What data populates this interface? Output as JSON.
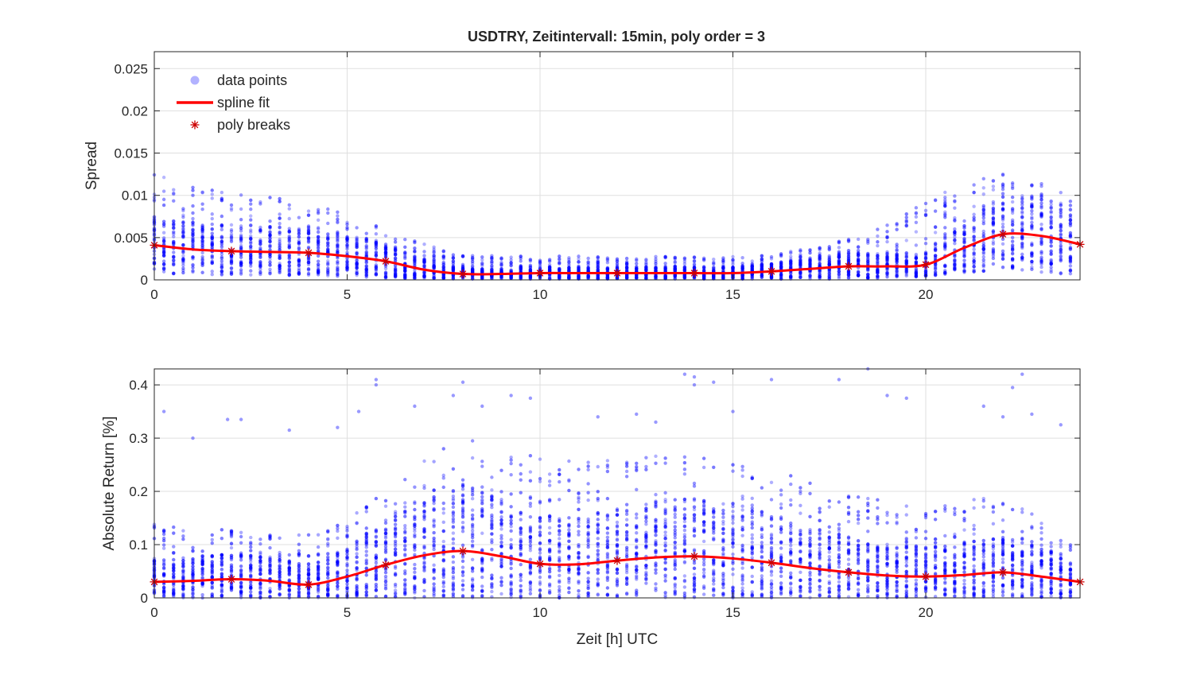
{
  "title": "USDTRY, Zeitintervall: 15min, poly order = 3",
  "colors": {
    "points": "#0000ff",
    "fit": "#ff0000",
    "breaks": "#cc0000",
    "grid": "#dfdfdf",
    "axis": "#262626"
  },
  "chart_data": [
    {
      "type": "scatter",
      "ylabel": "Spread",
      "xlim": [
        0,
        24
      ],
      "ylim": [
        0,
        0.027
      ],
      "xticks": [
        0,
        5,
        10,
        15,
        20
      ],
      "xtick_labels": [
        "0",
        "5",
        "10",
        "15",
        "20"
      ],
      "yticks": [
        0,
        0.005,
        0.01,
        0.015,
        0.02,
        0.025
      ],
      "ytick_labels": [
        "0",
        "0.005",
        "0.01",
        "0.015",
        "0.02",
        "0.025"
      ],
      "grid": true,
      "legend": {
        "placement": "top-left",
        "entries": [
          {
            "label": "data points",
            "marker": "circle"
          },
          {
            "label": "spline fit",
            "marker": "line"
          },
          {
            "label": "poly breaks",
            "marker": "asterisk"
          }
        ]
      },
      "scatter_profile": {
        "x": [
          0,
          1,
          2,
          3,
          4,
          5,
          6,
          7,
          8,
          9,
          10,
          11,
          12,
          13,
          14,
          15,
          16,
          17,
          18,
          19,
          20,
          21,
          22,
          23,
          24
        ],
        "y_max": [
          0.0125,
          0.011,
          0.0105,
          0.0098,
          0.009,
          0.008,
          0.006,
          0.0045,
          0.003,
          0.0028,
          0.0028,
          0.0028,
          0.0028,
          0.0028,
          0.0028,
          0.0028,
          0.003,
          0.0038,
          0.0048,
          0.0065,
          0.0095,
          0.0118,
          0.0128,
          0.0115,
          0.0098
        ],
        "y_min": [
          0.0008,
          0.0006,
          0.0005,
          0.0005,
          0.0005,
          0.0004,
          0.0002,
          0.0001,
          0.0001,
          0.0001,
          0.0001,
          0.0001,
          0.0001,
          0.0001,
          0.0001,
          0.0001,
          0.0001,
          0.0001,
          0.0001,
          0.0002,
          0.0004,
          0.0008,
          0.0012,
          0.0008,
          0.0006
        ]
      },
      "series": [
        {
          "name": "spline fit",
          "type": "line",
          "x": [
            0,
            1,
            2,
            3,
            4,
            5,
            6,
            7,
            8,
            9,
            10,
            11,
            12,
            13,
            14,
            15,
            16,
            17,
            18,
            19,
            20,
            21,
            22,
            23,
            24
          ],
          "y": [
            0.0041,
            0.0036,
            0.0034,
            0.0033,
            0.0032,
            0.0028,
            0.0022,
            0.0012,
            0.0007,
            0.0007,
            0.0008,
            0.0008,
            0.0008,
            0.0008,
            0.0008,
            0.0008,
            0.001,
            0.0013,
            0.0016,
            0.0016,
            0.0018,
            0.0038,
            0.0054,
            0.0052,
            0.0042
          ]
        },
        {
          "name": "poly breaks",
          "type": "scatter",
          "x": [
            0,
            2,
            4,
            6,
            8,
            10,
            12,
            14,
            16,
            18,
            20,
            22,
            24
          ],
          "y": [
            0.0041,
            0.0034,
            0.0032,
            0.0022,
            0.0007,
            0.0008,
            0.0008,
            0.0008,
            0.001,
            0.0016,
            0.0018,
            0.0054,
            0.0042
          ]
        }
      ]
    },
    {
      "type": "scatter",
      "ylabel": "Absolute Return [%]",
      "xlabel": "Zeit [h] UTC",
      "xlim": [
        0,
        24
      ],
      "ylim": [
        0,
        0.43
      ],
      "xticks": [
        0,
        5,
        10,
        15,
        20
      ],
      "xtick_labels": [
        "0",
        "5",
        "10",
        "15",
        "20"
      ],
      "yticks": [
        0,
        0.1,
        0.2,
        0.3,
        0.4
      ],
      "ytick_labels": [
        "0",
        "0.1",
        "0.2",
        "0.3",
        "0.4"
      ],
      "grid": true,
      "scatter_profile": {
        "x": [
          0,
          1,
          2,
          3,
          4,
          5,
          6,
          7,
          8,
          9,
          10,
          11,
          12,
          13,
          14,
          15,
          16,
          17,
          18,
          19,
          20,
          21,
          22,
          23,
          24
        ],
        "y_max": [
          0.14,
          0.13,
          0.13,
          0.12,
          0.12,
          0.15,
          0.2,
          0.26,
          0.3,
          0.28,
          0.27,
          0.26,
          0.26,
          0.27,
          0.28,
          0.26,
          0.24,
          0.22,
          0.2,
          0.18,
          0.17,
          0.18,
          0.2,
          0.15,
          0.1
        ],
        "y_min": [
          0,
          0,
          0,
          0,
          0,
          0,
          0,
          0,
          0,
          0,
          0,
          0,
          0,
          0,
          0,
          0,
          0,
          0,
          0,
          0,
          0,
          0,
          0,
          0,
          0
        ]
      },
      "outliers": [
        {
          "x": 0.25,
          "y": 0.35
        },
        {
          "x": 1.0,
          "y": 0.3
        },
        {
          "x": 1.9,
          "y": 0.335
        },
        {
          "x": 2.25,
          "y": 0.335
        },
        {
          "x": 3.5,
          "y": 0.315
        },
        {
          "x": 4.75,
          "y": 0.32
        },
        {
          "x": 5.3,
          "y": 0.35
        },
        {
          "x": 5.75,
          "y": 0.41
        },
        {
          "x": 5.75,
          "y": 0.4
        },
        {
          "x": 6.75,
          "y": 0.36
        },
        {
          "x": 7.75,
          "y": 0.38
        },
        {
          "x": 8.0,
          "y": 0.405
        },
        {
          "x": 8.5,
          "y": 0.36
        },
        {
          "x": 9.25,
          "y": 0.38
        },
        {
          "x": 9.75,
          "y": 0.375
        },
        {
          "x": 11.5,
          "y": 0.34
        },
        {
          "x": 12.5,
          "y": 0.345
        },
        {
          "x": 13.0,
          "y": 0.33
        },
        {
          "x": 13.75,
          "y": 0.42
        },
        {
          "x": 14.0,
          "y": 0.415
        },
        {
          "x": 14.0,
          "y": 0.4
        },
        {
          "x": 14.5,
          "y": 0.405
        },
        {
          "x": 15.0,
          "y": 0.35
        },
        {
          "x": 16.0,
          "y": 0.41
        },
        {
          "x": 17.75,
          "y": 0.41
        },
        {
          "x": 18.5,
          "y": 0.43
        },
        {
          "x": 19.0,
          "y": 0.38
        },
        {
          "x": 19.5,
          "y": 0.375
        },
        {
          "x": 21.5,
          "y": 0.36
        },
        {
          "x": 22.0,
          "y": 0.34
        },
        {
          "x": 22.25,
          "y": 0.395
        },
        {
          "x": 22.5,
          "y": 0.42
        },
        {
          "x": 22.75,
          "y": 0.345
        },
        {
          "x": 23.5,
          "y": 0.325
        }
      ],
      "series": [
        {
          "name": "spline fit",
          "type": "line",
          "x": [
            0,
            1,
            2,
            3,
            4,
            5,
            6,
            7,
            8,
            9,
            10,
            11,
            12,
            13,
            14,
            15,
            16,
            17,
            18,
            19,
            20,
            21,
            22,
            23,
            24
          ],
          "y": [
            0.03,
            0.032,
            0.035,
            0.032,
            0.025,
            0.04,
            0.062,
            0.08,
            0.088,
            0.078,
            0.064,
            0.063,
            0.07,
            0.076,
            0.078,
            0.074,
            0.066,
            0.056,
            0.048,
            0.042,
            0.04,
            0.043,
            0.048,
            0.04,
            0.03
          ]
        },
        {
          "name": "poly breaks",
          "type": "scatter",
          "x": [
            0,
            2,
            4,
            6,
            8,
            10,
            12,
            14,
            16,
            18,
            20,
            22,
            24
          ],
          "y": [
            0.03,
            0.035,
            0.025,
            0.062,
            0.088,
            0.064,
            0.07,
            0.078,
            0.066,
            0.048,
            0.04,
            0.048,
            0.03
          ]
        }
      ]
    }
  ]
}
